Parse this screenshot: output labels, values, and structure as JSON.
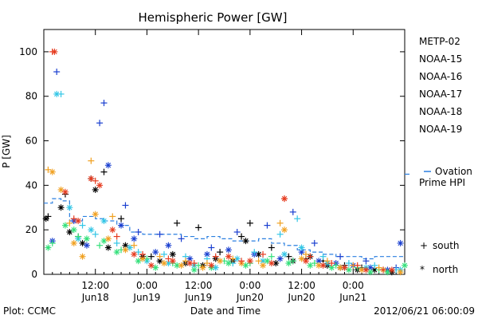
{
  "chart_data": {
    "type": "scatter",
    "title": "Hemispheric Power [GW]",
    "ylabel": "P [GW]",
    "xlabel": "Date and Time",
    "ylim": [
      0,
      110
    ],
    "yticks": [
      0,
      20,
      40,
      60,
      80,
      100
    ],
    "xlim_hours": [
      0,
      84
    ],
    "xticks": [
      {
        "h": 12,
        "time": "12:00",
        "day": "Jun18"
      },
      {
        "h": 24,
        "time": "0:00",
        "day": "Jun19"
      },
      {
        "h": 36,
        "time": "12:00",
        "day": "Jun19"
      },
      {
        "h": 48,
        "time": "0:00",
        "day": "Jun20"
      },
      {
        "h": 60,
        "time": "12:00",
        "day": "Jun20"
      },
      {
        "h": 72,
        "time": "0:00",
        "day": "Jun21"
      }
    ],
    "legend": {
      "placement": "right",
      "entries": [
        {
          "name": "METP-02",
          "color": "#000000"
        },
        {
          "name": "NOAA-15",
          "color": "#1a3fd0"
        },
        {
          "name": "NOAA-16",
          "color": "#33c6e6"
        },
        {
          "name": "NOAA-17",
          "color": "#33e07a"
        },
        {
          "name": "NOAA-18",
          "color": "#f0a020"
        },
        {
          "name": "NOAA-19",
          "color": "#e63b1f"
        }
      ],
      "ovation": {
        "label_line1": "Ovation",
        "label_line2": "Prime HPI",
        "color": "#2a7fe0"
      },
      "markers": [
        {
          "symbol": "+",
          "label": "south"
        },
        {
          "symbol": "*",
          "label": "north"
        }
      ]
    },
    "footer": {
      "left": "Plot: CCMC",
      "right": "2012/06/21 06:00:09"
    },
    "ovation_hpi": [
      [
        0,
        32
      ],
      [
        2,
        34
      ],
      [
        4,
        33
      ],
      [
        6,
        24
      ],
      [
        9,
        26
      ],
      [
        12,
        25
      ],
      [
        14,
        24
      ],
      [
        17,
        22
      ],
      [
        20,
        19
      ],
      [
        23,
        18
      ],
      [
        26,
        18
      ],
      [
        29,
        18
      ],
      [
        32,
        17
      ],
      [
        35,
        16
      ],
      [
        38,
        17
      ],
      [
        41,
        16
      ],
      [
        44,
        15
      ],
      [
        47,
        15
      ],
      [
        50,
        16
      ],
      [
        53,
        14
      ],
      [
        56,
        13
      ],
      [
        59,
        11
      ],
      [
        62,
        10
      ],
      [
        65,
        9
      ],
      [
        68,
        8
      ],
      [
        71,
        8
      ],
      [
        74,
        7
      ],
      [
        77,
        8
      ],
      [
        80,
        8
      ],
      [
        84,
        8
      ]
    ],
    "series": [
      {
        "name": "METP-02",
        "color": "#000000",
        "south": [
          [
            1,
            26
          ],
          [
            5,
            36
          ],
          [
            8,
            17
          ],
          [
            11,
            43
          ],
          [
            14,
            46
          ],
          [
            18,
            25
          ],
          [
            25,
            8
          ],
          [
            31,
            23
          ],
          [
            36,
            21
          ],
          [
            41,
            10
          ],
          [
            46,
            17
          ],
          [
            48,
            23
          ],
          [
            53,
            12
          ],
          [
            57,
            8
          ],
          [
            61,
            7
          ],
          [
            65,
            6
          ],
          [
            70,
            4
          ],
          [
            74,
            3
          ]
        ],
        "north": [
          [
            0.5,
            25
          ],
          [
            4,
            30
          ],
          [
            6,
            19
          ],
          [
            9,
            14
          ],
          [
            12,
            38
          ],
          [
            15,
            12
          ],
          [
            19,
            13
          ],
          [
            23,
            8
          ],
          [
            27,
            6
          ],
          [
            30,
            9
          ],
          [
            33,
            5
          ],
          [
            37,
            4
          ],
          [
            40,
            7
          ],
          [
            44,
            6
          ],
          [
            47,
            15
          ],
          [
            50,
            9
          ],
          [
            54,
            5
          ],
          [
            58,
            6
          ],
          [
            62,
            8
          ],
          [
            66,
            4
          ],
          [
            69,
            3
          ],
          [
            73,
            2
          ],
          [
            77,
            2
          ],
          [
            81,
            1
          ]
        ]
      },
      {
        "name": "NOAA-15",
        "color": "#1a3fd0",
        "south": [
          [
            3,
            91
          ],
          [
            13,
            68
          ],
          [
            14,
            77
          ],
          [
            19,
            31
          ],
          [
            22,
            19
          ],
          [
            27,
            18
          ],
          [
            32,
            16
          ],
          [
            39,
            12
          ],
          [
            45,
            19
          ],
          [
            52,
            22
          ],
          [
            58,
            28
          ],
          [
            63,
            14
          ],
          [
            69,
            8
          ],
          [
            75,
            6
          ],
          [
            82,
            3
          ]
        ],
        "north": [
          [
            2,
            15
          ],
          [
            7,
            24
          ],
          [
            10,
            13
          ],
          [
            15,
            49
          ],
          [
            18,
            22
          ],
          [
            21,
            16
          ],
          [
            26,
            10
          ],
          [
            29,
            13
          ],
          [
            34,
            7
          ],
          [
            38,
            9
          ],
          [
            43,
            11
          ],
          [
            49,
            9
          ],
          [
            55,
            7
          ],
          [
            60,
            10
          ],
          [
            64,
            6
          ],
          [
            68,
            5
          ],
          [
            72,
            4
          ],
          [
            76,
            3
          ],
          [
            80,
            2
          ],
          [
            83,
            14
          ]
        ]
      },
      {
        "name": "NOAA-16",
        "color": "#33c6e6",
        "south": [
          [
            4,
            81
          ],
          [
            9,
            22
          ],
          [
            12,
            18
          ],
          [
            17,
            14
          ],
          [
            22,
            10
          ],
          [
            28,
            9
          ],
          [
            33,
            8
          ],
          [
            38,
            7
          ],
          [
            44,
            5
          ],
          [
            49,
            10
          ],
          [
            55,
            18
          ],
          [
            59,
            25
          ],
          [
            65,
            8
          ],
          [
            71,
            5
          ],
          [
            77,
            4
          ],
          [
            82,
            2
          ]
        ],
        "north": [
          [
            3,
            81
          ],
          [
            6,
            30
          ],
          [
            8,
            16
          ],
          [
            11,
            20
          ],
          [
            14,
            24
          ],
          [
            20,
            12
          ],
          [
            24,
            6
          ],
          [
            29,
            5
          ],
          [
            35,
            4
          ],
          [
            40,
            3
          ],
          [
            45,
            7
          ],
          [
            51,
            6
          ],
          [
            56,
            9
          ],
          [
            60,
            12
          ],
          [
            66,
            5
          ],
          [
            70,
            3
          ],
          [
            75,
            3
          ],
          [
            79,
            2
          ],
          [
            83,
            2
          ]
        ]
      },
      {
        "name": "NOAA-17",
        "color": "#33e07a",
        "south": [
          [
            2,
            14
          ],
          [
            8,
            17
          ],
          [
            13,
            13
          ],
          [
            18,
            11
          ],
          [
            24,
            7
          ],
          [
            30,
            5
          ],
          [
            36,
            4
          ],
          [
            42,
            6
          ],
          [
            48,
            5
          ],
          [
            53,
            8
          ],
          [
            58,
            6
          ],
          [
            63,
            5
          ],
          [
            68,
            4
          ],
          [
            73,
            3
          ],
          [
            78,
            2
          ]
        ],
        "north": [
          [
            1,
            12
          ],
          [
            5,
            22
          ],
          [
            7,
            20
          ],
          [
            10,
            16
          ],
          [
            14,
            15
          ],
          [
            17,
            10
          ],
          [
            22,
            6
          ],
          [
            26,
            3
          ],
          [
            31,
            4
          ],
          [
            35,
            2
          ],
          [
            39,
            3
          ],
          [
            43,
            5
          ],
          [
            47,
            4
          ],
          [
            52,
            6
          ],
          [
            57,
            5
          ],
          [
            62,
            4
          ],
          [
            67,
            3
          ],
          [
            71,
            2
          ],
          [
            76,
            1
          ],
          [
            80,
            1
          ],
          [
            84,
            4
          ]
        ]
      },
      {
        "name": "NOAA-18",
        "color": "#f0a020",
        "south": [
          [
            1,
            47
          ],
          [
            6,
            23
          ],
          [
            11,
            51
          ],
          [
            16,
            26
          ],
          [
            21,
            13
          ],
          [
            27,
            8
          ],
          [
            33,
            6
          ],
          [
            38,
            5
          ],
          [
            44,
            7
          ],
          [
            50,
            6
          ],
          [
            55,
            23
          ],
          [
            61,
            9
          ],
          [
            66,
            6
          ],
          [
            72,
            4
          ],
          [
            78,
            3
          ]
        ],
        "north": [
          [
            2,
            46
          ],
          [
            4,
            38
          ],
          [
            7,
            14
          ],
          [
            9,
            8
          ],
          [
            12,
            27
          ],
          [
            15,
            16
          ],
          [
            19,
            11
          ],
          [
            23,
            7
          ],
          [
            28,
            5
          ],
          [
            32,
            4
          ],
          [
            37,
            3
          ],
          [
            41,
            6
          ],
          [
            46,
            5
          ],
          [
            51,
            4
          ],
          [
            56,
            20
          ],
          [
            60,
            7
          ],
          [
            64,
            4
          ],
          [
            69,
            3
          ],
          [
            74,
            2
          ],
          [
            79,
            2
          ],
          [
            83,
            1
          ]
        ]
      },
      {
        "name": "NOAA-19",
        "color": "#e63b1f",
        "south": [
          [
            2,
            100
          ],
          [
            7,
            25
          ],
          [
            12,
            42
          ],
          [
            17,
            17
          ],
          [
            23,
            9
          ],
          [
            29,
            7
          ],
          [
            35,
            5
          ],
          [
            40,
            8
          ],
          [
            46,
            6
          ],
          [
            51,
            9
          ],
          [
            56,
            34
          ],
          [
            62,
            8
          ],
          [
            67,
            5
          ],
          [
            73,
            4
          ],
          [
            79,
            2
          ]
        ],
        "north": [
          [
            2.5,
            100
          ],
          [
            5,
            37
          ],
          [
            8,
            24
          ],
          [
            11,
            43
          ],
          [
            13,
            40
          ],
          [
            16,
            20
          ],
          [
            21,
            9
          ],
          [
            25,
            4
          ],
          [
            30,
            6
          ],
          [
            34,
            5
          ],
          [
            39,
            4
          ],
          [
            43,
            8
          ],
          [
            48,
            6
          ],
          [
            53,
            5
          ],
          [
            56,
            34
          ],
          [
            61,
            6
          ],
          [
            65,
            4
          ],
          [
            70,
            3
          ],
          [
            75,
            2
          ],
          [
            81,
            2
          ]
        ]
      }
    ]
  }
}
